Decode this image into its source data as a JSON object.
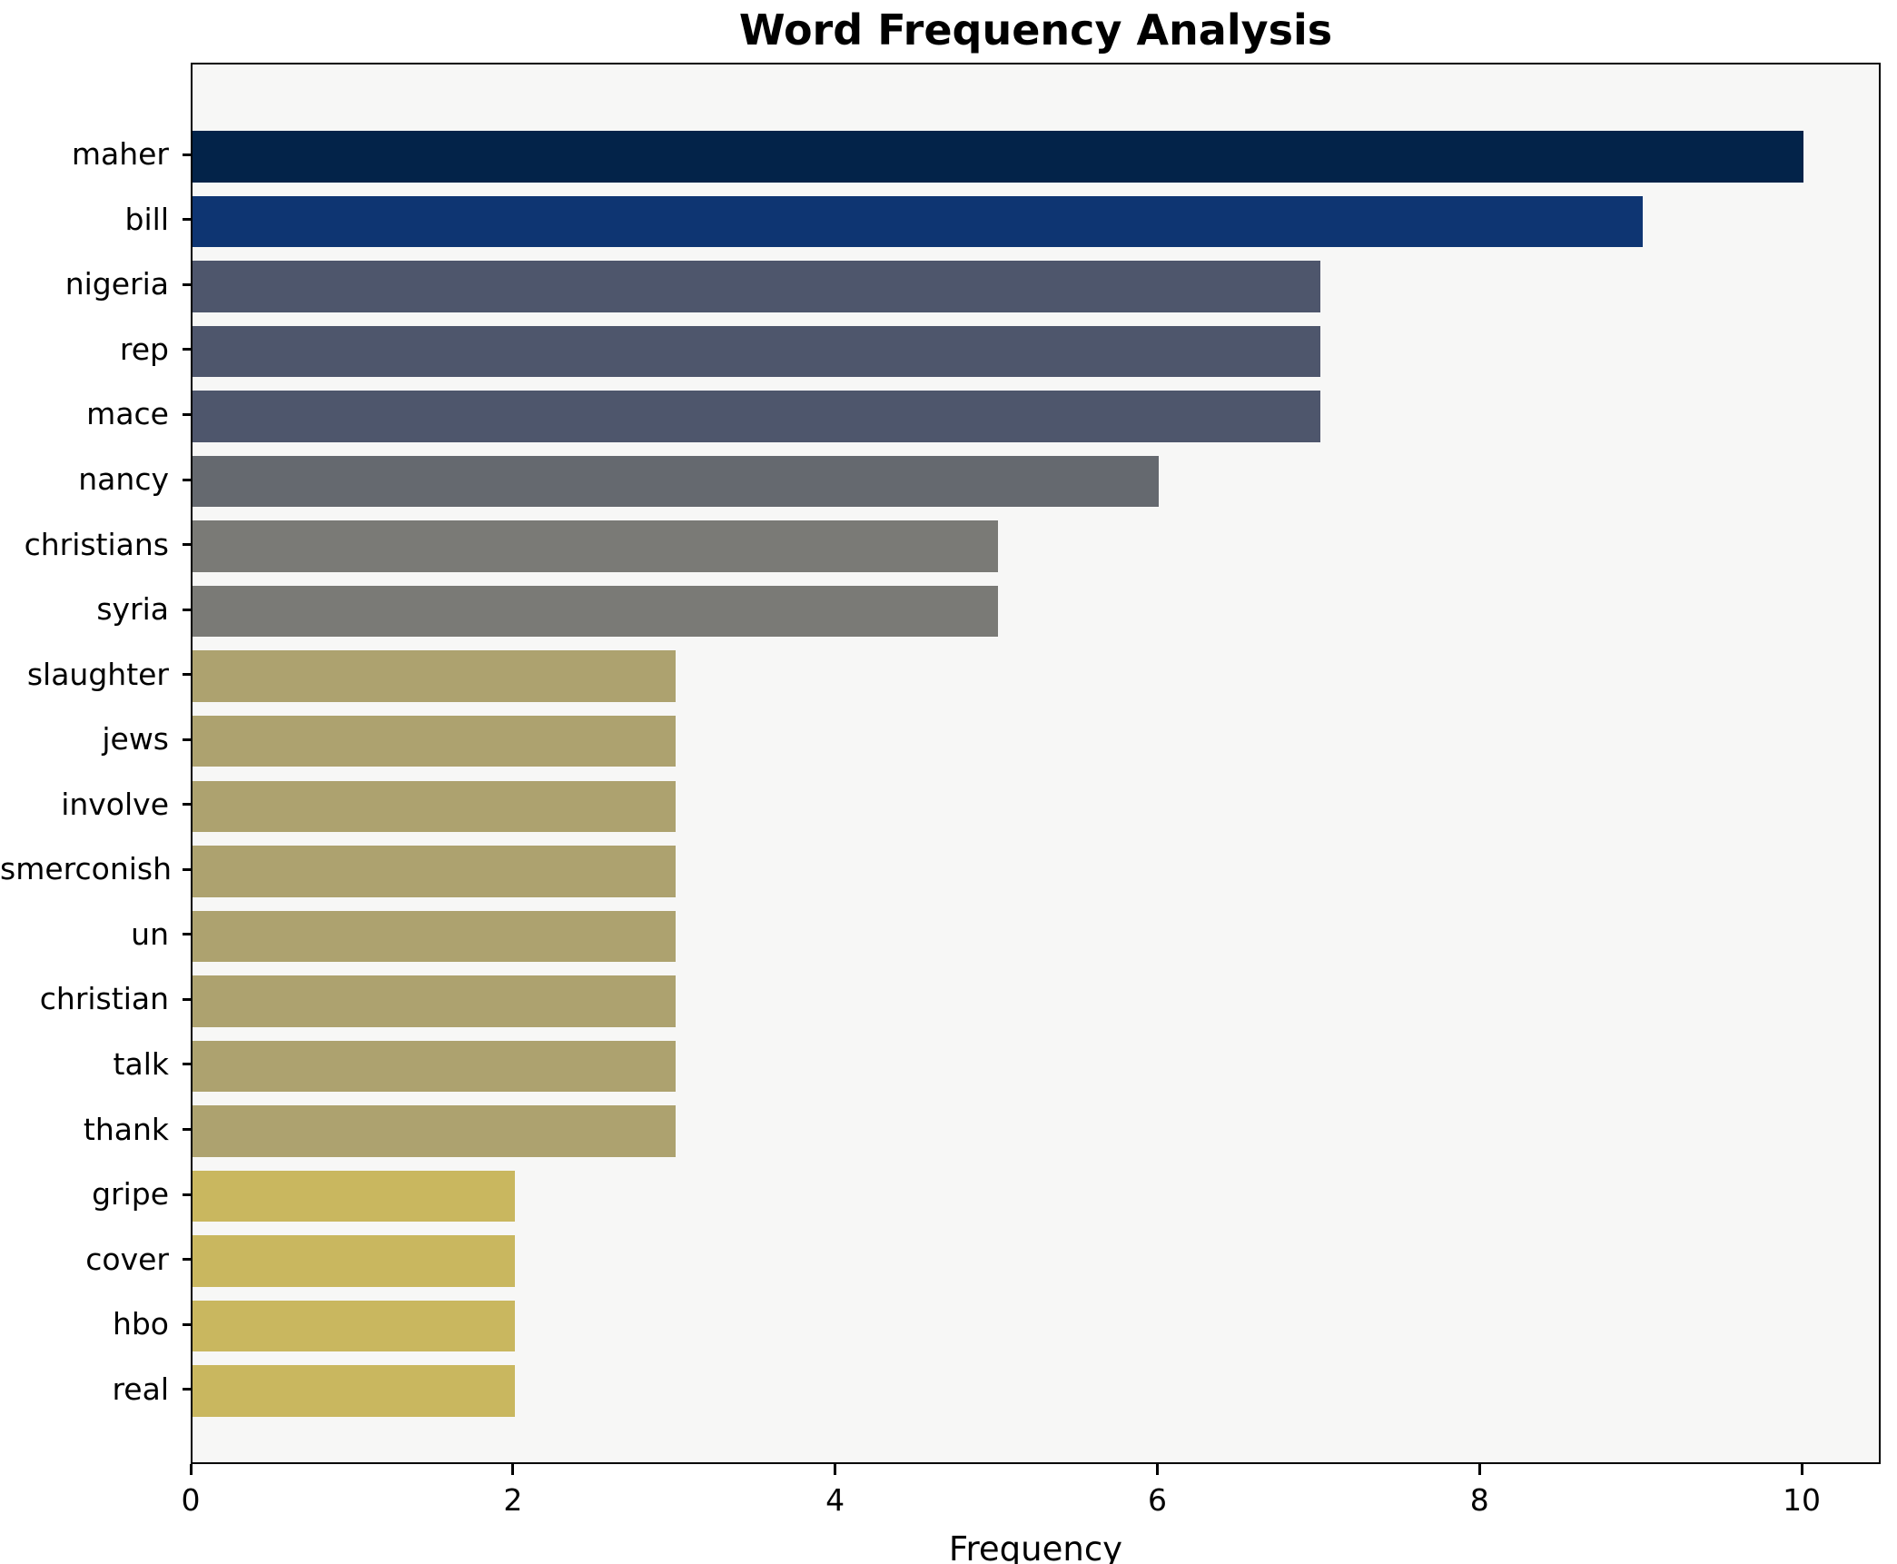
{
  "title": "Word Frequency Analysis",
  "chart_data": {
    "type": "bar",
    "orientation": "horizontal",
    "title": "Word Frequency Analysis",
    "xlabel": "Frequency",
    "ylabel": "",
    "categories": [
      "maher",
      "bill",
      "nigeria",
      "rep",
      "mace",
      "nancy",
      "christians",
      "syria",
      "slaughter",
      "jews",
      "involve",
      "smerconish",
      "un",
      "christian",
      "talk",
      "thank",
      "gripe",
      "cover",
      "hbo",
      "real"
    ],
    "values": [
      10,
      9,
      7,
      7,
      7,
      6,
      5,
      5,
      3,
      3,
      3,
      3,
      3,
      3,
      3,
      3,
      2,
      2,
      2,
      2
    ],
    "bar_colors": [
      "#032349",
      "#0e3572",
      "#4e566c",
      "#4e566c",
      "#4e566c",
      "#65696f",
      "#7a7a76",
      "#7a7a76",
      "#ada26f",
      "#ada26f",
      "#ada26f",
      "#ada26f",
      "#ada26f",
      "#ada26f",
      "#ada26f",
      "#ada26f",
      "#c9b75f",
      "#c9b75f",
      "#c9b75f",
      "#c9b75f"
    ],
    "x_ticks": [
      0,
      2,
      4,
      6,
      8,
      10
    ],
    "xlim": [
      0,
      10.49
    ],
    "grid": false,
    "legend_position": "none",
    "plot_bg": "#f7f7f6",
    "fig_bg": "#ffffff",
    "bar_label_color": "#000000"
  }
}
